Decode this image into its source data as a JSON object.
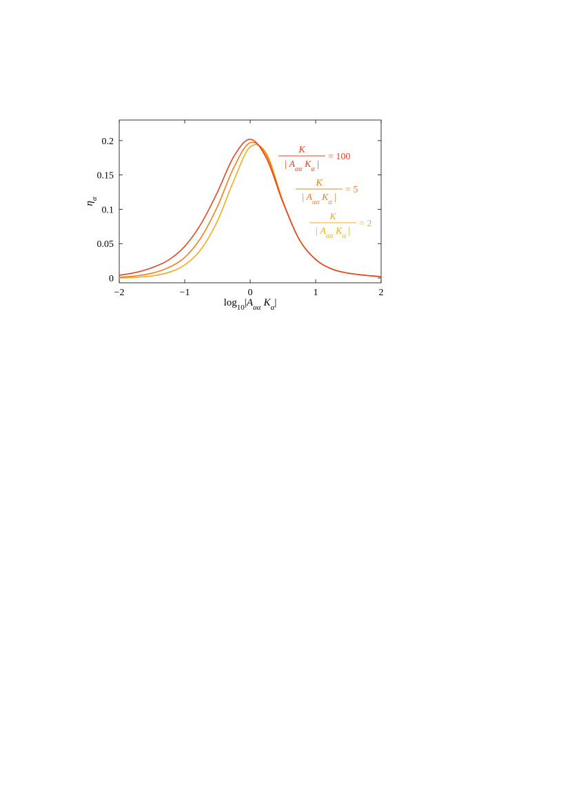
{
  "chart_data": {
    "type": "line",
    "xlabel": {
      "prefix": "log",
      "sub": "10",
      "body": "|",
      "A": "A",
      "A_sub": "αα",
      "K": "K",
      "K_sub": "α",
      "end": "|"
    },
    "ylabel": {
      "main": "η",
      "sub": "α"
    },
    "xlim": [
      -2,
      2
    ],
    "ylim": [
      -0.007,
      0.23
    ],
    "x_ticks": [
      -2,
      -1,
      0,
      1,
      2
    ],
    "x_tick_labels": [
      "−2",
      "−1",
      "0",
      "1",
      "2"
    ],
    "y_ticks": [
      0,
      0.05,
      0.1,
      0.15,
      0.2
    ],
    "y_tick_labels": [
      "0",
      "0.05",
      "0.1",
      "0.15",
      "0.2"
    ],
    "grid": false,
    "series": [
      {
        "ratio": "100",
        "color": "#e8431f",
        "x": [
          -2.0,
          -1.75,
          -1.5,
          -1.25,
          -1.0,
          -0.75,
          -0.5,
          -0.25,
          0.0,
          0.25,
          0.5,
          0.75,
          1.0,
          1.25,
          1.5,
          1.75,
          2.0
        ],
        "y": [
          0.004,
          0.008,
          0.015,
          0.026,
          0.046,
          0.079,
          0.125,
          0.177,
          0.202,
          0.174,
          0.11,
          0.056,
          0.027,
          0.013,
          0.007,
          0.004,
          0.002
        ]
      },
      {
        "ratio": "5",
        "color": "#f27d1c",
        "x": [
          -2.0,
          -1.75,
          -1.5,
          -1.25,
          -1.0,
          -0.75,
          -0.5,
          -0.25,
          0.0,
          0.25,
          0.5,
          0.75,
          1.0,
          1.25,
          1.5,
          1.75,
          2.0
        ],
        "y": [
          0.001,
          0.003,
          0.007,
          0.015,
          0.03,
          0.059,
          0.104,
          0.161,
          0.197,
          0.178,
          0.111,
          0.056,
          0.027,
          0.013,
          0.007,
          0.004,
          0.002
        ]
      },
      {
        "ratio": "2",
        "color": "#f5ac19",
        "x": [
          -2.0,
          -1.75,
          -1.5,
          -1.25,
          -1.0,
          -0.75,
          -0.5,
          -0.25,
          0.0,
          0.25,
          0.5,
          0.75,
          1.0,
          1.25,
          1.5,
          1.75,
          2.0
        ],
        "y": [
          0.0,
          0.001,
          0.003,
          0.008,
          0.019,
          0.042,
          0.083,
          0.142,
          0.191,
          0.181,
          0.112,
          0.056,
          0.027,
          0.013,
          0.007,
          0.004,
          0.002
        ]
      }
    ],
    "annotation_parts": {
      "numerator": "K",
      "bar": "|",
      "A": "A",
      "A_sub": "αα",
      "K": "K",
      "K_sub": "α",
      "equals": "="
    }
  }
}
